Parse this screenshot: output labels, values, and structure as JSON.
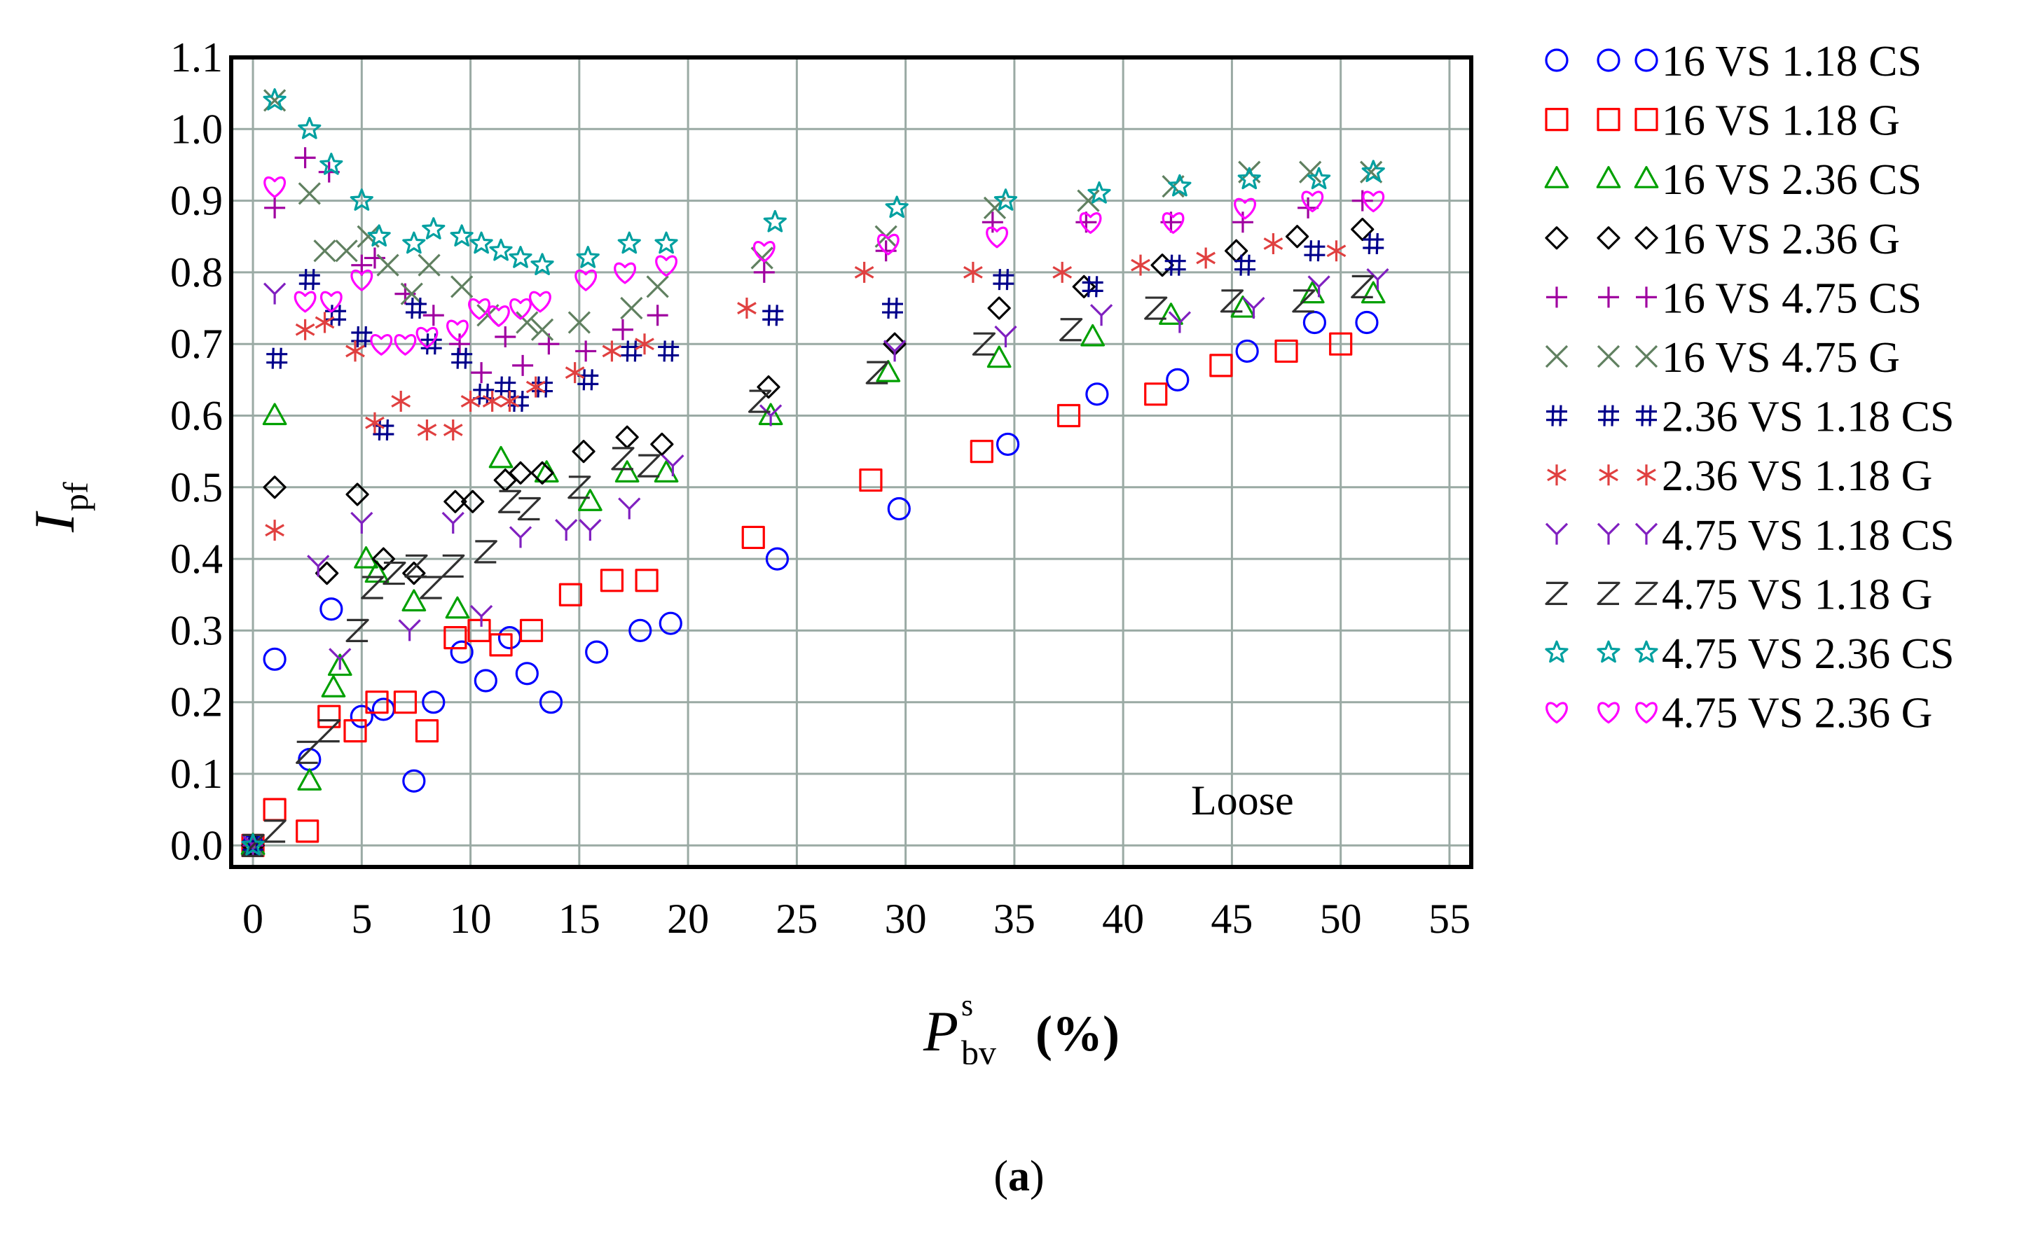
{
  "caption": {
    "open": "(",
    "letter": "a",
    "close": ")"
  },
  "chart_data": {
    "type": "scatter",
    "title": "",
    "xlabel": {
      "main": "P",
      "sup": "s",
      "sub": "bv",
      "unit": "(%)"
    },
    "ylabel": {
      "main": "I",
      "sub": "pf"
    },
    "xlim": [
      -1,
      56
    ],
    "ylim": [
      -0.03,
      1.1
    ],
    "xticks": [
      0,
      5,
      10,
      15,
      20,
      25,
      30,
      35,
      40,
      45,
      50,
      55
    ],
    "yticks": [
      0.0,
      0.1,
      0.2,
      0.3,
      0.4,
      0.5,
      0.6,
      0.7,
      0.8,
      0.9,
      1.0,
      1.1
    ],
    "ytick_labels": [
      "0.0",
      "0.1",
      "0.2",
      "0.3",
      "0.4",
      "0.5",
      "0.6",
      "0.7",
      "0.8",
      "0.9",
      "1.0",
      "1.1"
    ],
    "grid": true,
    "annotation": "Loose",
    "legend_position": "outside-right",
    "series": [
      {
        "name": "16 VS 1.18 CS",
        "marker": "circle",
        "color": "#0000ff",
        "x": [
          0,
          1,
          2.6,
          3.6,
          5,
          6,
          7.4,
          8.3,
          9.6,
          10.7,
          11.8,
          12.6,
          13.7,
          15.8,
          17.8,
          19.2,
          24.1,
          29.7,
          34.7,
          38.8,
          42.5,
          45.7,
          48.8,
          51.2
        ],
        "y": [
          0,
          0.26,
          0.12,
          0.33,
          0.18,
          0.19,
          0.09,
          0.2,
          0.27,
          0.23,
          0.29,
          0.24,
          0.2,
          0.27,
          0.3,
          0.31,
          0.4,
          0.47,
          0.56,
          0.63,
          0.65,
          0.69,
          0.73,
          0.73
        ]
      },
      {
        "name": "16 VS 1.18 G",
        "marker": "square",
        "color": "#ff0000",
        "x": [
          0,
          1,
          2.5,
          3.5,
          4.7,
          5.7,
          7,
          8,
          9.3,
          10.4,
          11.4,
          12.8,
          14.6,
          16.5,
          18.1,
          23,
          28.4,
          33.5,
          37.5,
          41.5,
          44.5,
          47.5,
          50
        ],
        "y": [
          0,
          0.05,
          0.02,
          0.18,
          0.16,
          0.2,
          0.2,
          0.16,
          0.29,
          0.3,
          0.28,
          0.3,
          0.35,
          0.37,
          0.37,
          0.43,
          0.51,
          0.55,
          0.6,
          0.63,
          0.67,
          0.69,
          0.7
        ]
      },
      {
        "name": "16 VS 2.36 CS",
        "marker": "triangle",
        "color": "#00a000",
        "x": [
          0,
          1,
          2.6,
          3.7,
          4,
          5.2,
          5.7,
          7.4,
          9.4,
          11.4,
          13.5,
          15.5,
          17.2,
          19,
          23.8,
          29.2,
          34.3,
          38.6,
          42.2,
          45.5,
          48.7,
          51.5
        ],
        "y": [
          0,
          0.6,
          0.09,
          0.22,
          0.25,
          0.4,
          0.38,
          0.34,
          0.33,
          0.54,
          0.52,
          0.48,
          0.52,
          0.52,
          0.6,
          0.66,
          0.68,
          0.71,
          0.74,
          0.75,
          0.77,
          0.77
        ]
      },
      {
        "name": "16 VS 2.36 G",
        "marker": "diamond",
        "color": "#000000",
        "x": [
          0,
          1,
          3.4,
          4.8,
          6,
          7.4,
          9.3,
          10.1,
          11.6,
          12.3,
          13.3,
          15.2,
          17.2,
          18.8,
          23.7,
          29.5,
          34.3,
          38.2,
          41.8,
          45.2,
          48,
          51
        ],
        "y": [
          0,
          0.5,
          0.38,
          0.49,
          0.4,
          0.38,
          0.48,
          0.48,
          0.51,
          0.52,
          0.52,
          0.55,
          0.57,
          0.56,
          0.64,
          0.7,
          0.75,
          0.78,
          0.81,
          0.83,
          0.85,
          0.86
        ]
      },
      {
        "name": "16 VS 4.75 CS",
        "marker": "plus",
        "color": "#a000a0",
        "x": [
          0,
          1,
          2.4,
          3.5,
          5,
          5.6,
          7,
          8.3,
          9.5,
          10.5,
          11.6,
          12.4,
          13.6,
          15.3,
          17,
          18.6,
          23.5,
          29.1,
          34,
          38.3,
          42.2,
          45.5,
          48.5,
          51
        ],
        "y": [
          0,
          0.89,
          0.96,
          0.94,
          0.81,
          0.82,
          0.77,
          0.74,
          0.7,
          0.66,
          0.71,
          0.67,
          0.7,
          0.69,
          0.72,
          0.74,
          0.8,
          0.83,
          0.87,
          0.87,
          0.87,
          0.87,
          0.89,
          0.9
        ]
      },
      {
        "name": "16 VS 4.75 G",
        "marker": "cross",
        "color": "#608060",
        "x": [
          0,
          1,
          2.6,
          3.3,
          4.3,
          5.3,
          6.2,
          7.3,
          8.1,
          9.6,
          10.8,
          12.6,
          13.3,
          15,
          17.4,
          18.6,
          23.4,
          29.1,
          34.1,
          38.4,
          42.3,
          45.8,
          48.6,
          51.4
        ],
        "y": [
          0,
          1.04,
          0.91,
          0.83,
          0.83,
          0.85,
          0.81,
          0.77,
          0.81,
          0.78,
          0.74,
          0.73,
          0.72,
          0.73,
          0.75,
          0.78,
          0.82,
          0.85,
          0.89,
          0.9,
          0.92,
          0.94,
          0.94,
          0.94
        ]
      },
      {
        "name": "2.36 VS 1.18 CS",
        "marker": "hash",
        "color": "#00008b",
        "x": [
          0,
          1.1,
          2.6,
          3.8,
          5,
          6,
          7.5,
          8.2,
          9.6,
          10.6,
          11.6,
          12.2,
          13.3,
          15.4,
          17.4,
          19.1,
          23.9,
          29.4,
          34.5,
          38.6,
          42.4,
          45.6,
          48.8,
          51.5
        ],
        "y": [
          0,
          0.68,
          0.79,
          0.74,
          0.71,
          0.58,
          0.75,
          0.7,
          0.68,
          0.63,
          0.64,
          0.62,
          0.64,
          0.65,
          0.69,
          0.69,
          0.74,
          0.75,
          0.79,
          0.78,
          0.81,
          0.81,
          0.83,
          0.84
        ]
      },
      {
        "name": "2.36 VS 1.18 G",
        "marker": "asterisk",
        "color": "#e04040",
        "x": [
          1,
          2.4,
          3.3,
          4.7,
          5.6,
          6.8,
          8,
          9.2,
          10,
          11,
          11.8,
          13,
          14.8,
          16.5,
          18,
          22.7,
          28.1,
          33.1,
          37.2,
          40.8,
          43.8,
          46.9,
          49.8
        ],
        "y": [
          0.44,
          0.72,
          0.73,
          0.69,
          0.59,
          0.62,
          0.58,
          0.58,
          0.62,
          0.62,
          0.62,
          0.64,
          0.66,
          0.69,
          0.7,
          0.75,
          0.8,
          0.8,
          0.8,
          0.81,
          0.82,
          0.84,
          0.83
        ]
      },
      {
        "name": "4.75 VS 1.18 CS",
        "marker": "ypsilon",
        "color": "#8020c0",
        "x": [
          0,
          1,
          3,
          4,
          5,
          7.2,
          9.2,
          10.5,
          12.3,
          14.4,
          15.5,
          17.3,
          19.3,
          23.8,
          29.5,
          34.6,
          39,
          42.6,
          46,
          49,
          51.7
        ],
        "y": [
          0,
          0.77,
          0.39,
          0.26,
          0.45,
          0.3,
          0.45,
          0.32,
          0.43,
          0.44,
          0.44,
          0.47,
          0.53,
          0.6,
          0.69,
          0.71,
          0.74,
          0.73,
          0.75,
          0.78,
          0.79
        ]
      },
      {
        "name": "4.75 VS 1.18 G",
        "marker": "zee",
        "color": "#303030",
        "x": [
          0,
          1,
          2.5,
          3.5,
          4.8,
          5.5,
          6.5,
          7.5,
          8.2,
          9.2,
          10.7,
          11.8,
          12.7,
          15,
          17,
          18.2,
          23.3,
          28.7,
          33.6,
          37.6,
          41.5,
          45,
          48.3,
          51
        ],
        "y": [
          0,
          0.02,
          0.13,
          0.16,
          0.3,
          0.36,
          0.38,
          0.39,
          0.36,
          0.39,
          0.41,
          0.48,
          0.47,
          0.5,
          0.54,
          0.53,
          0.62,
          0.66,
          0.7,
          0.72,
          0.75,
          0.76,
          0.76,
          0.78
        ]
      },
      {
        "name": "4.75 VS 2.36 CS",
        "marker": "star",
        "color": "#00a0a0",
        "x": [
          0,
          1,
          2.6,
          3.6,
          5,
          5.8,
          7.4,
          8.3,
          9.6,
          10.5,
          11.4,
          12.3,
          13.3,
          15.4,
          17.3,
          19,
          24,
          29.6,
          34.6,
          38.9,
          42.6,
          45.8,
          49,
          51.5
        ],
        "y": [
          0,
          1.04,
          1.0,
          0.95,
          0.9,
          0.85,
          0.84,
          0.86,
          0.85,
          0.84,
          0.83,
          0.82,
          0.81,
          0.82,
          0.84,
          0.84,
          0.87,
          0.89,
          0.9,
          0.91,
          0.92,
          0.93,
          0.93,
          0.94
        ]
      },
      {
        "name": "4.75 VS 2.36 G",
        "marker": "heart",
        "color": "#ff00ff",
        "x": [
          1,
          2.4,
          3.6,
          5,
          5.9,
          7,
          8,
          9.4,
          10.4,
          11.3,
          12.3,
          13.2,
          15.3,
          17.1,
          19,
          23.5,
          29.2,
          34.2,
          38.5,
          42.3,
          45.6,
          48.7,
          51.5
        ],
        "y": [
          0.92,
          0.76,
          0.76,
          0.79,
          0.7,
          0.7,
          0.71,
          0.72,
          0.75,
          0.74,
          0.75,
          0.76,
          0.79,
          0.8,
          0.81,
          0.83,
          0.84,
          0.85,
          0.87,
          0.87,
          0.89,
          0.9,
          0.9
        ]
      }
    ]
  }
}
